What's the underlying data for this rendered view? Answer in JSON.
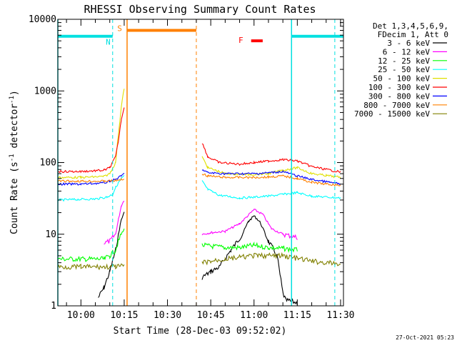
{
  "chart_data": {
    "type": "line",
    "title": "RHESSI Observing Summary Count Rates",
    "xlabel": "Start Time (28-Dec-03 09:52:02)",
    "ylabel_main": "Count Rate (s",
    "ylabel_sup1": "-1",
    "ylabel_mid": " detector",
    "ylabel_sup2": "-1",
    "ylabel_end": ")",
    "y_scale": "log",
    "ylim": [
      1,
      10000
    ],
    "xlim": [
      "09:52",
      "11:31"
    ],
    "y_ticks": [
      {
        "value": 1,
        "label": "1"
      },
      {
        "value": 10,
        "label": "10"
      },
      {
        "value": 100,
        "label": "100"
      },
      {
        "value": 1000,
        "label": "1000"
      },
      {
        "value": 10000,
        "label": "10000"
      }
    ],
    "x_ticks": [
      "10:00",
      "10:15",
      "10:30",
      "10:45",
      "11:00",
      "11:15",
      "11:30"
    ],
    "legend_header": [
      "Det 1,3,4,5,6,9,",
      "FDecim 1, Att 0"
    ],
    "legend_position": "right",
    "series": [
      {
        "name": "3 - 6 keV",
        "color": "#000000",
        "points": [
          [
            "09:52",
            null
          ],
          [
            "10:00",
            null
          ],
          [
            "10:06",
            1.3
          ],
          [
            "10:08",
            1.8
          ],
          [
            "10:10",
            3
          ],
          [
            "10:12",
            6
          ],
          [
            "10:13",
            10
          ],
          [
            "10:14",
            16
          ],
          [
            "10:15",
            20
          ],
          [
            "10:41",
            null
          ],
          [
            "10:42",
            2.5
          ],
          [
            "10:45",
            3
          ],
          [
            "10:48",
            3.5
          ],
          [
            "10:52",
            6
          ],
          [
            "10:56",
            10
          ],
          [
            "10:58",
            15
          ],
          [
            "11:00",
            18
          ],
          [
            "11:02",
            15
          ],
          [
            "11:05",
            8
          ],
          [
            "11:08",
            5
          ],
          [
            "11:10",
            1.5
          ],
          [
            "11:11",
            1.2
          ],
          [
            "11:15",
            1.1
          ],
          [
            "11:20",
            null
          ]
        ]
      },
      {
        "name": "6 - 12 keV",
        "color": "#ff00ff",
        "points": [
          [
            "10:08",
            7.5
          ],
          [
            "10:10",
            8
          ],
          [
            "10:12",
            10
          ],
          [
            "10:13",
            16
          ],
          [
            "10:14",
            25
          ],
          [
            "10:15",
            30
          ],
          [
            "10:41",
            null
          ],
          [
            "10:42",
            10
          ],
          [
            "10:45",
            10.5
          ],
          [
            "10:50",
            11
          ],
          [
            "10:55",
            14
          ],
          [
            "11:00",
            22
          ],
          [
            "11:03",
            19
          ],
          [
            "11:06",
            12
          ],
          [
            "11:10",
            10
          ],
          [
            "11:15",
            9
          ],
          [
            "11:16",
            null
          ]
        ]
      },
      {
        "name": "12 - 25 keV",
        "color": "#00ff00",
        "points": [
          [
            "09:52",
            4.5
          ],
          [
            "10:00",
            4.5
          ],
          [
            "10:08",
            4.5
          ],
          [
            "10:10",
            5
          ],
          [
            "10:12",
            6
          ],
          [
            "10:13",
            8
          ],
          [
            "10:14",
            10
          ],
          [
            "10:15",
            12
          ],
          [
            "10:41",
            null
          ],
          [
            "10:42",
            7
          ],
          [
            "10:45",
            6.8
          ],
          [
            "10:50",
            6.5
          ],
          [
            "10:55",
            6.5
          ],
          [
            "11:00",
            7
          ],
          [
            "11:05",
            6.5
          ],
          [
            "11:10",
            6.3
          ],
          [
            "11:15",
            6
          ],
          [
            "11:16",
            null
          ]
        ]
      },
      {
        "name": "25 - 50 keV",
        "color": "#00ffff",
        "points": [
          [
            "09:52",
            30
          ],
          [
            "09:58",
            30.5
          ],
          [
            "10:05",
            31
          ],
          [
            "10:09",
            33
          ],
          [
            "10:11",
            36
          ],
          [
            "10:12",
            45
          ],
          [
            "10:14",
            60
          ],
          [
            "10:15",
            65
          ],
          [
            "10:41",
            null
          ],
          [
            "10:42",
            55
          ],
          [
            "10:44",
            42
          ],
          [
            "10:48",
            35
          ],
          [
            "10:55",
            32
          ],
          [
            "11:00",
            33
          ],
          [
            "11:05",
            34
          ],
          [
            "11:10",
            36
          ],
          [
            "11:15",
            38
          ],
          [
            "11:20",
            34
          ],
          [
            "11:30",
            32
          ],
          [
            "11:31",
            null
          ]
        ]
      },
      {
        "name": "50 - 100 keV",
        "color": "#e0e000",
        "points": [
          [
            "09:52",
            62
          ],
          [
            "10:00",
            62
          ],
          [
            "10:08",
            64
          ],
          [
            "10:10",
            70
          ],
          [
            "10:12",
            100
          ],
          [
            "10:13",
            250
          ],
          [
            "10:14",
            600
          ],
          [
            "10:15",
            1100
          ],
          [
            "10:41",
            null
          ],
          [
            "10:42",
            120
          ],
          [
            "10:44",
            85
          ],
          [
            "10:50",
            70
          ],
          [
            "10:58",
            68
          ],
          [
            "11:05",
            70
          ],
          [
            "11:10",
            78
          ],
          [
            "11:13",
            82
          ],
          [
            "11:15",
            85
          ],
          [
            "11:20",
            70
          ],
          [
            "11:25",
            66
          ],
          [
            "11:30",
            62
          ],
          [
            "11:31",
            null
          ]
        ]
      },
      {
        "name": "100 - 300 keV",
        "color": "#ff0000",
        "points": [
          [
            "09:52",
            75
          ],
          [
            "10:00",
            75
          ],
          [
            "10:08",
            78
          ],
          [
            "10:10",
            85
          ],
          [
            "10:12",
            120
          ],
          [
            "10:13",
            200
          ],
          [
            "10:14",
            400
          ],
          [
            "10:15",
            600
          ],
          [
            "10:41",
            null
          ],
          [
            "10:42",
            190
          ],
          [
            "10:44",
            120
          ],
          [
            "10:48",
            100
          ],
          [
            "10:55",
            95
          ],
          [
            "11:00",
            100
          ],
          [
            "11:05",
            105
          ],
          [
            "11:10",
            110
          ],
          [
            "11:15",
            105
          ],
          [
            "11:20",
            88
          ],
          [
            "11:25",
            80
          ],
          [
            "11:30",
            74
          ],
          [
            "11:31",
            null
          ]
        ]
      },
      {
        "name": "300 - 800 keV",
        "color": "#0000ff",
        "points": [
          [
            "09:52",
            50
          ],
          [
            "10:00",
            50
          ],
          [
            "10:08",
            52
          ],
          [
            "10:10",
            55
          ],
          [
            "10:12",
            58
          ],
          [
            "10:14",
            65
          ],
          [
            "10:15",
            70
          ],
          [
            "10:41",
            null
          ],
          [
            "10:42",
            80
          ],
          [
            "10:44",
            72
          ],
          [
            "10:50",
            70
          ],
          [
            "11:00",
            70
          ],
          [
            "11:05",
            72
          ],
          [
            "11:10",
            75
          ],
          [
            "11:15",
            65
          ],
          [
            "11:20",
            58
          ],
          [
            "11:25",
            54
          ],
          [
            "11:30",
            50
          ],
          [
            "11:31",
            null
          ]
        ]
      },
      {
        "name": "800 - 7000 keV",
        "color": "#ff8000",
        "points": [
          [
            "09:52",
            55
          ],
          [
            "10:00",
            55
          ],
          [
            "10:08",
            55
          ],
          [
            "10:12",
            56
          ],
          [
            "10:14",
            58
          ],
          [
            "10:15",
            58
          ],
          [
            "10:41",
            null
          ],
          [
            "10:42",
            70
          ],
          [
            "10:44",
            65
          ],
          [
            "10:50",
            62
          ],
          [
            "11:00",
            62
          ],
          [
            "11:05",
            63
          ],
          [
            "11:10",
            65
          ],
          [
            "11:15",
            60
          ],
          [
            "11:20",
            53
          ],
          [
            "11:25",
            50
          ],
          [
            "11:30",
            48
          ],
          [
            "11:31",
            null
          ]
        ]
      },
      {
        "name": "7000 - 15000 keV",
        "color": "#808000",
        "points": [
          [
            "09:52",
            3.5
          ],
          [
            "10:00",
            3.5
          ],
          [
            "10:08",
            3.5
          ],
          [
            "10:12",
            3.5
          ],
          [
            "10:15",
            3.6
          ],
          [
            "10:41",
            null
          ],
          [
            "10:42",
            4
          ],
          [
            "10:50",
            4.5
          ],
          [
            "11:00",
            5
          ],
          [
            "11:10",
            5
          ],
          [
            "11:20",
            4.2
          ],
          [
            "11:30",
            3.8
          ],
          [
            "11:31",
            null
          ]
        ]
      }
    ],
    "flags": [
      {
        "label": "N",
        "color": "#00e0e0",
        "from": "09:52",
        "to": "10:11",
        "level": 5800,
        "label_at": "10:11",
        "line_at": [
          "09:52"
        ],
        "dashed_at": [
          "10:11"
        ]
      },
      {
        "label": "N",
        "color": "#00e0e0",
        "from": "11:13",
        "to": "11:31",
        "level": 5800,
        "label_at": "",
        "line_at": [
          "11:13"
        ],
        "dashed_at": [
          "11:28"
        ]
      },
      {
        "label": "S",
        "color": "#ff8000",
        "from": "10:16",
        "to": "10:40",
        "level": 7000,
        "label_at": "10:15",
        "line_at": [
          "10:16"
        ],
        "dashed_at": [
          "10:40"
        ]
      },
      {
        "label": "F",
        "color": "#ff0000",
        "from": "10:59",
        "to": "11:03",
        "level": 5000,
        "label_at": "10:57",
        "line_at": [],
        "dashed_at": []
      }
    ],
    "gaps": [
      [
        "10:16",
        "10:41"
      ]
    ],
    "grid": false,
    "footer_date": "27-Oct-2021 05:23"
  }
}
